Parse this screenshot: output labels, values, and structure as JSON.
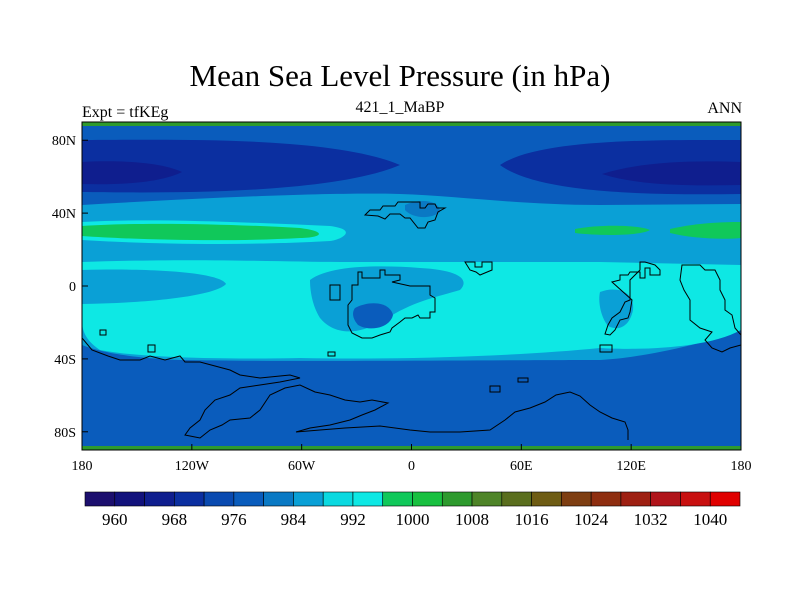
{
  "chart_data": {
    "type": "heatmap",
    "title": "Mean Sea Level Pressure (in hPa)",
    "left_string": "Expt = tfKEg",
    "center_string": "421_1_MaBP",
    "right_string": "ANN",
    "x_range": [
      -180,
      180
    ],
    "y_range": [
      -90,
      90
    ],
    "x_ticks": [
      {
        "value": -180,
        "label": "180"
      },
      {
        "value": -120,
        "label": "120W"
      },
      {
        "value": -60,
        "label": "60W"
      },
      {
        "value": 0,
        "label": "0"
      },
      {
        "value": 60,
        "label": "60E"
      },
      {
        "value": 120,
        "label": "120E"
      },
      {
        "value": 180,
        "label": "180"
      }
    ],
    "y_ticks": [
      {
        "value": 80,
        "label": "80N"
      },
      {
        "value": 40,
        "label": "40N"
      },
      {
        "value": 0,
        "label": "0"
      },
      {
        "value": -40,
        "label": "40S"
      },
      {
        "value": -80,
        "label": "80S"
      }
    ],
    "colorbar": {
      "colors": [
        "#1c0f6e",
        "#12127c",
        "#0f1e8e",
        "#0b2fa0",
        "#0a4ab0",
        "#0a5cbc",
        "#0a79c4",
        "#0aa0d6",
        "#0bd9e0",
        "#0ee8e4",
        "#10c85a",
        "#18c040",
        "#2e9a2e",
        "#4e8428",
        "#5a6e1e",
        "#6e5c14",
        "#7e3e12",
        "#8e2e10",
        "#9e2012",
        "#b0141a",
        "#c81010",
        "#e00000"
      ],
      "labels": [
        {
          "after_index": 1,
          "label": "960"
        },
        {
          "after_index": 3,
          "label": "968"
        },
        {
          "after_index": 5,
          "label": "976"
        },
        {
          "after_index": 7,
          "label": "984"
        },
        {
          "after_index": 9,
          "label": "992"
        },
        {
          "after_index": 11,
          "label": "1000"
        },
        {
          "after_index": 13,
          "label": "1008"
        },
        {
          "after_index": 15,
          "label": "1016"
        },
        {
          "after_index": 17,
          "label": "1024"
        },
        {
          "after_index": 19,
          "label": "1032"
        },
        {
          "after_index": 21,
          "label": "1040"
        }
      ]
    },
    "pressure_bands_hPa": [
      {
        "lat_from": 90,
        "lat_to": 88,
        "value": 1006
      },
      {
        "lat_from": 88,
        "lat_to": 70,
        "value": 984
      },
      {
        "lat_from": 70,
        "lat_to": 60,
        "value": 976
      },
      {
        "lat_from": 60,
        "lat_to": 45,
        "value": 984
      },
      {
        "lat_from": 45,
        "lat_to": 32,
        "value": 998
      },
      {
        "lat_from": 32,
        "lat_to": 22,
        "value": 1004
      },
      {
        "lat_from": 22,
        "lat_to": 12,
        "value": 998
      },
      {
        "lat_from": 12,
        "lat_to": -38,
        "value": 1000
      },
      {
        "lat_from": -38,
        "lat_to": -45,
        "value": 992
      },
      {
        "lat_from": -45,
        "lat_to": -88,
        "value": 984
      },
      {
        "lat_from": -88,
        "lat_to": -90,
        "value": 1006
      }
    ]
  }
}
